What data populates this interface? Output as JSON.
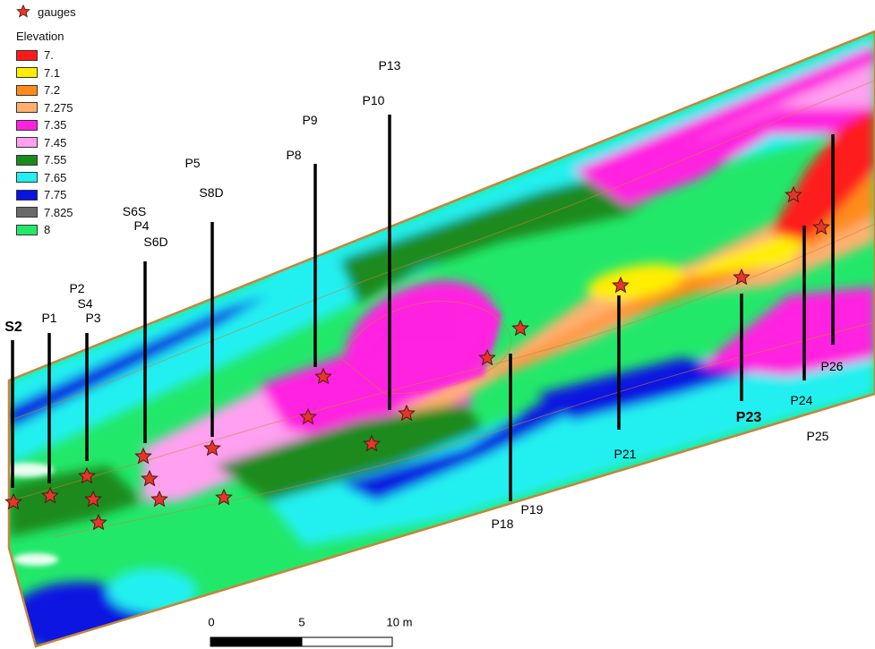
{
  "legend": {
    "gauges_label": "gauges",
    "elevation_title": "Elevation",
    "classes": [
      {
        "label": "7.",
        "color": "#ff1a1a"
      },
      {
        "label": "7.1",
        "color": "#ffee00"
      },
      {
        "label": "7.2",
        "color": "#ff8c1a"
      },
      {
        "label": "7.275",
        "color": "#ffb070"
      },
      {
        "label": "7.35",
        "color": "#ff22e0"
      },
      {
        "label": "7.45",
        "color": "#ffa0f0"
      },
      {
        "label": "7.55",
        "color": "#1a8a1a"
      },
      {
        "label": "7.65",
        "color": "#22f0f0"
      },
      {
        "label": "7.75",
        "color": "#0a14e0"
      },
      {
        "label": "7.825",
        "color": "#6a6a6a"
      },
      {
        "label": "8",
        "color": "#22e86a"
      }
    ]
  },
  "gauge_labels": [
    "S2",
    "P1",
    "P2",
    "S4",
    "P3",
    "S6S",
    "P4",
    "S6D",
    "P5",
    "S8D",
    "P8",
    "P9",
    "P10",
    "P13",
    "P18",
    "P19",
    "P21",
    "P23",
    "P24",
    "P25",
    "P26"
  ],
  "scale_bar": {
    "ticks": [
      "0",
      "5",
      "10 m"
    ]
  },
  "colors": {
    "star": "#e8342a",
    "outline": "#c8843a"
  }
}
